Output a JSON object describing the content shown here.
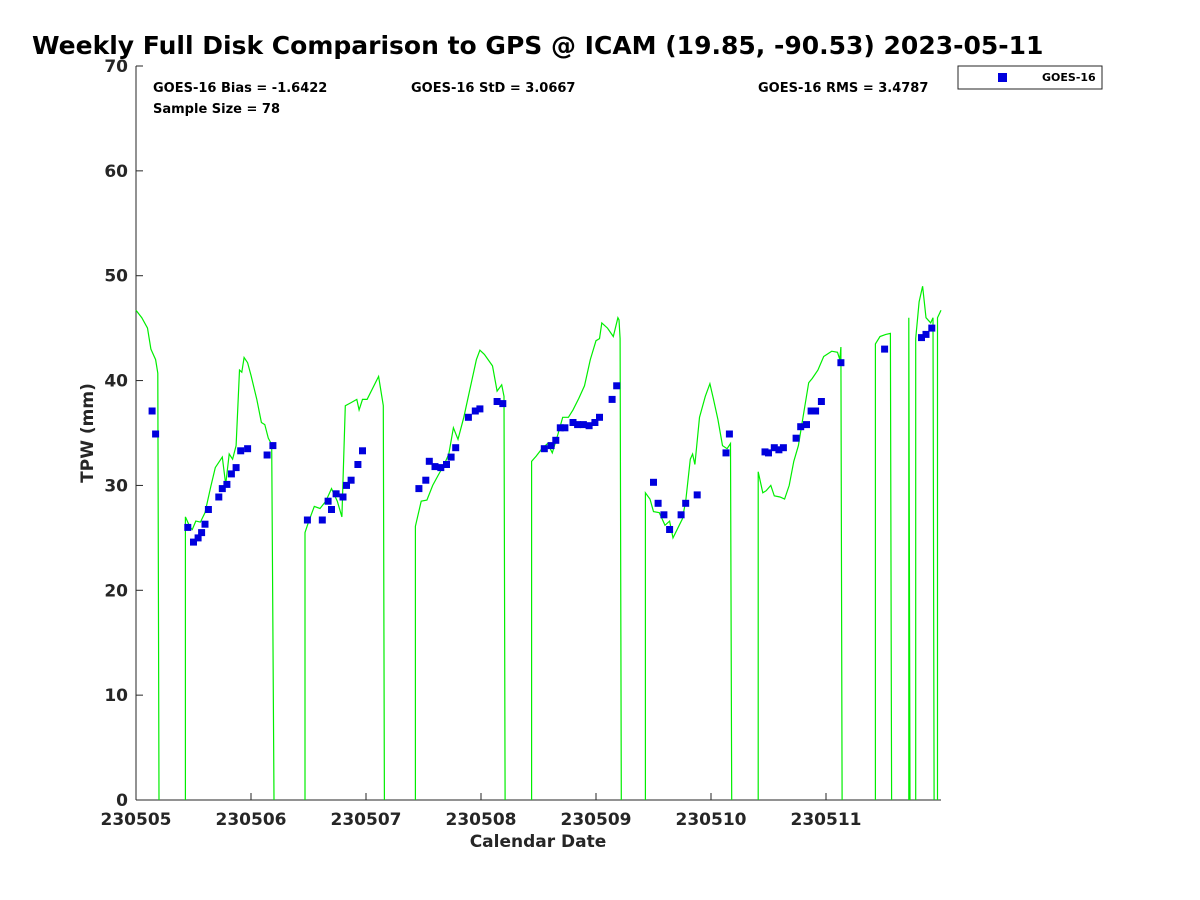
{
  "title": "Weekly Full Disk Comparison to GPS @ ICAM (19.85, -90.53) 2023-05-11",
  "stats": {
    "bias": "GOES-16 Bias = -1.6422",
    "std": "GOES-16 StD = 3.0667",
    "rms": "GOES-16 RMS = 3.4787",
    "sample": "Sample Size = 78"
  },
  "colors": {
    "gps_line": "#00ee00",
    "goes_marker": "#0000dd",
    "axis": "#262626"
  },
  "chart_data": {
    "type": "scatter",
    "title": "Weekly Full Disk Comparison to GPS @ ICAM (19.85, -90.53) 2023-05-11",
    "xlabel": "Calendar Date",
    "ylabel": "TPW (mm)",
    "xlim": [
      0,
      7
    ],
    "ylim": [
      0,
      70
    ],
    "xticks": [
      0,
      1,
      2,
      3,
      4,
      5,
      6
    ],
    "xtick_labels": [
      "230505",
      "230506",
      "230507",
      "230508",
      "230509",
      "230510",
      "230511"
    ],
    "yticks": [
      0,
      10,
      20,
      30,
      40,
      50,
      60,
      70
    ],
    "ytick_labels": [
      "0",
      "10",
      "20",
      "30",
      "40",
      "50",
      "60",
      "70"
    ],
    "grid": false,
    "legend_position": "top-right",
    "legend": [
      "GOES-16"
    ],
    "series": [
      {
        "name": "GOES-16",
        "kind": "scatter",
        "points": [
          [
            0.14,
            37.1
          ],
          [
            0.17,
            34.9
          ],
          [
            0.45,
            26.0
          ],
          [
            0.5,
            24.6
          ],
          [
            0.54,
            25.0
          ],
          [
            0.57,
            25.5
          ],
          [
            0.6,
            26.3
          ],
          [
            0.63,
            27.7
          ],
          [
            0.72,
            28.9
          ],
          [
            0.75,
            29.7
          ],
          [
            0.79,
            30.1
          ],
          [
            0.83,
            31.1
          ],
          [
            0.87,
            31.7
          ],
          [
            0.91,
            33.3
          ],
          [
            0.97,
            33.5
          ],
          [
            1.14,
            32.9
          ],
          [
            1.19,
            33.8
          ],
          [
            1.49,
            26.7
          ],
          [
            1.62,
            26.7
          ],
          [
            1.67,
            28.5
          ],
          [
            1.7,
            27.7
          ],
          [
            1.74,
            29.2
          ],
          [
            1.8,
            28.9
          ],
          [
            1.83,
            30.0
          ],
          [
            1.87,
            30.5
          ],
          [
            1.93,
            32.0
          ],
          [
            1.97,
            33.3
          ],
          [
            2.46,
            29.7
          ],
          [
            2.52,
            30.5
          ],
          [
            2.55,
            32.3
          ],
          [
            2.6,
            31.8
          ],
          [
            2.65,
            31.7
          ],
          [
            2.7,
            32.0
          ],
          [
            2.74,
            32.7
          ],
          [
            2.78,
            33.6
          ],
          [
            2.89,
            36.5
          ],
          [
            2.95,
            37.1
          ],
          [
            2.99,
            37.3
          ],
          [
            3.14,
            38.0
          ],
          [
            3.19,
            37.8
          ],
          [
            3.55,
            33.5
          ],
          [
            3.61,
            33.8
          ],
          [
            3.65,
            34.3
          ],
          [
            3.69,
            35.5
          ],
          [
            3.73,
            35.5
          ],
          [
            3.8,
            36.0
          ],
          [
            3.84,
            35.8
          ],
          [
            3.89,
            35.8
          ],
          [
            3.94,
            35.7
          ],
          [
            3.99,
            36.0
          ],
          [
            4.03,
            36.5
          ],
          [
            4.14,
            38.2
          ],
          [
            4.18,
            39.5
          ],
          [
            4.5,
            30.3
          ],
          [
            4.54,
            28.3
          ],
          [
            4.59,
            27.2
          ],
          [
            4.64,
            25.8
          ],
          [
            4.74,
            27.2
          ],
          [
            4.78,
            28.3
          ],
          [
            4.88,
            29.1
          ],
          [
            5.13,
            33.1
          ],
          [
            5.16,
            34.9
          ],
          [
            5.47,
            33.2
          ],
          [
            5.5,
            33.1
          ],
          [
            5.55,
            33.6
          ],
          [
            5.59,
            33.4
          ],
          [
            5.63,
            33.6
          ],
          [
            5.74,
            34.5
          ],
          [
            5.78,
            35.6
          ],
          [
            5.83,
            35.8
          ],
          [
            5.87,
            37.1
          ],
          [
            5.91,
            37.1
          ],
          [
            5.96,
            38.0
          ],
          [
            6.13,
            41.7
          ],
          [
            6.51,
            43.0
          ],
          [
            6.83,
            44.1
          ],
          [
            6.87,
            44.4
          ],
          [
            6.92,
            45.0
          ]
        ]
      },
      {
        "name": "",
        "kind": "line",
        "segments": [
          [
            [
              0.0,
              46.7
            ],
            [
              0.05,
              46.0
            ],
            [
              0.1,
              45.0
            ],
            [
              0.13,
              43.0
            ],
            [
              0.17,
              42.0
            ],
            [
              0.19,
              40.7
            ],
            [
              0.2,
              0.0
            ]
          ],
          [
            [
              0.43,
              0.0
            ],
            [
              0.43,
              27.0
            ],
            [
              0.47,
              26.0
            ],
            [
              0.49,
              25.8
            ],
            [
              0.52,
              26.6
            ],
            [
              0.56,
              26.5
            ],
            [
              0.6,
              27.4
            ],
            [
              0.65,
              29.9
            ],
            [
              0.69,
              31.7
            ],
            [
              0.75,
              32.7
            ],
            [
              0.78,
              30.1
            ],
            [
              0.81,
              33.0
            ],
            [
              0.84,
              32.5
            ],
            [
              0.87,
              33.8
            ],
            [
              0.9,
              41.0
            ],
            [
              0.92,
              40.8
            ],
            [
              0.94,
              42.2
            ],
            [
              0.97,
              41.7
            ],
            [
              1.0,
              40.5
            ],
            [
              1.05,
              38.2
            ],
            [
              1.09,
              36.0
            ],
            [
              1.12,
              35.8
            ],
            [
              1.15,
              34.5
            ],
            [
              1.18,
              33.9
            ],
            [
              1.2,
              0.0
            ]
          ],
          [
            [
              1.47,
              0.0
            ],
            [
              1.47,
              25.5
            ],
            [
              1.5,
              26.5
            ],
            [
              1.55,
              28.0
            ],
            [
              1.6,
              27.8
            ],
            [
              1.65,
              28.5
            ],
            [
              1.7,
              29.7
            ],
            [
              1.75,
              28.5
            ],
            [
              1.79,
              27.0
            ],
            [
              1.82,
              37.6
            ],
            [
              1.87,
              37.9
            ],
            [
              1.92,
              38.2
            ],
            [
              1.94,
              37.2
            ],
            [
              1.97,
              38.2
            ],
            [
              2.01,
              38.2
            ],
            [
              2.11,
              40.4
            ],
            [
              2.15,
              37.6
            ],
            [
              2.16,
              0.0
            ]
          ],
          [
            [
              2.43,
              0.0
            ],
            [
              2.43,
              26.1
            ],
            [
              2.48,
              28.5
            ],
            [
              2.53,
              28.6
            ],
            [
              2.58,
              30.0
            ],
            [
              2.63,
              31.0
            ],
            [
              2.68,
              32.0
            ],
            [
              2.72,
              33.0
            ],
            [
              2.76,
              35.5
            ],
            [
              2.8,
              34.4
            ],
            [
              2.85,
              36.5
            ],
            [
              2.9,
              39.0
            ],
            [
              2.96,
              42.0
            ],
            [
              2.99,
              42.9
            ],
            [
              3.03,
              42.5
            ],
            [
              3.1,
              41.4
            ],
            [
              3.14,
              39.0
            ],
            [
              3.18,
              39.6
            ],
            [
              3.2,
              38.5
            ],
            [
              3.21,
              0.0
            ]
          ],
          [
            [
              3.44,
              0.0
            ],
            [
              3.44,
              32.3
            ],
            [
              3.48,
              32.8
            ],
            [
              3.53,
              33.5
            ],
            [
              3.58,
              34.0
            ],
            [
              3.62,
              33.1
            ],
            [
              3.67,
              34.9
            ],
            [
              3.71,
              36.5
            ],
            [
              3.76,
              36.5
            ],
            [
              3.8,
              37.2
            ],
            [
              3.85,
              38.3
            ],
            [
              3.9,
              39.5
            ],
            [
              3.95,
              42.0
            ],
            [
              4.0,
              43.8
            ],
            [
              4.03,
              44.0
            ],
            [
              4.05,
              45.5
            ],
            [
              4.1,
              45.0
            ],
            [
              4.15,
              44.2
            ],
            [
              4.19,
              46.0
            ],
            [
              4.2,
              45.8
            ],
            [
              4.21,
              44.0
            ],
            [
              4.22,
              0.0
            ]
          ],
          [
            [
              4.43,
              0.0
            ],
            [
              4.43,
              29.3
            ],
            [
              4.47,
              28.7
            ],
            [
              4.5,
              27.5
            ],
            [
              4.55,
              27.4
            ],
            [
              4.6,
              26.2
            ],
            [
              4.64,
              26.6
            ],
            [
              4.67,
              25.0
            ],
            [
              4.75,
              26.8
            ],
            [
              4.78,
              28.5
            ],
            [
              4.82,
              32.5
            ],
            [
              4.84,
              33.0
            ],
            [
              4.86,
              32.0
            ],
            [
              4.9,
              36.5
            ],
            [
              4.95,
              38.5
            ],
            [
              4.99,
              39.7
            ],
            [
              5.02,
              38.3
            ],
            [
              5.06,
              36.3
            ],
            [
              5.1,
              33.8
            ],
            [
              5.14,
              33.5
            ],
            [
              5.17,
              34.0
            ],
            [
              5.18,
              0.0
            ]
          ],
          [
            [
              5.41,
              0.0
            ],
            [
              5.41,
              31.3
            ],
            [
              5.45,
              29.3
            ],
            [
              5.48,
              29.5
            ],
            [
              5.52,
              30.0
            ],
            [
              5.55,
              29.0
            ],
            [
              5.6,
              28.9
            ],
            [
              5.64,
              28.7
            ],
            [
              5.68,
              30.0
            ],
            [
              5.72,
              32.3
            ],
            [
              5.76,
              33.8
            ],
            [
              5.8,
              36.5
            ],
            [
              5.85,
              39.8
            ],
            [
              5.88,
              40.2
            ],
            [
              5.93,
              41.0
            ],
            [
              5.98,
              42.3
            ],
            [
              6.05,
              42.8
            ],
            [
              6.1,
              42.7
            ],
            [
              6.12,
              42.0
            ],
            [
              6.13,
              43.2
            ],
            [
              6.14,
              0.0
            ]
          ],
          [
            [
              6.43,
              0.0
            ],
            [
              6.43,
              43.5
            ],
            [
              6.47,
              44.2
            ],
            [
              6.52,
              44.4
            ],
            [
              6.56,
              44.5
            ],
            [
              6.57,
              0.0
            ]
          ],
          [
            [
              6.72,
              0.0
            ],
            [
              6.72,
              46.0
            ],
            [
              6.73,
              0.0
            ]
          ],
          [
            [
              6.78,
              0.0
            ],
            [
              6.78,
              44.0
            ],
            [
              6.81,
              47.5
            ],
            [
              6.84,
              49.0
            ],
            [
              6.87,
              46.0
            ],
            [
              6.91,
              45.5
            ],
            [
              6.93,
              46.0
            ],
            [
              6.94,
              0.0
            ]
          ],
          [
            [
              6.97,
              0.0
            ],
            [
              6.97,
              46.0
            ],
            [
              7.0,
              46.7
            ]
          ]
        ]
      }
    ]
  }
}
